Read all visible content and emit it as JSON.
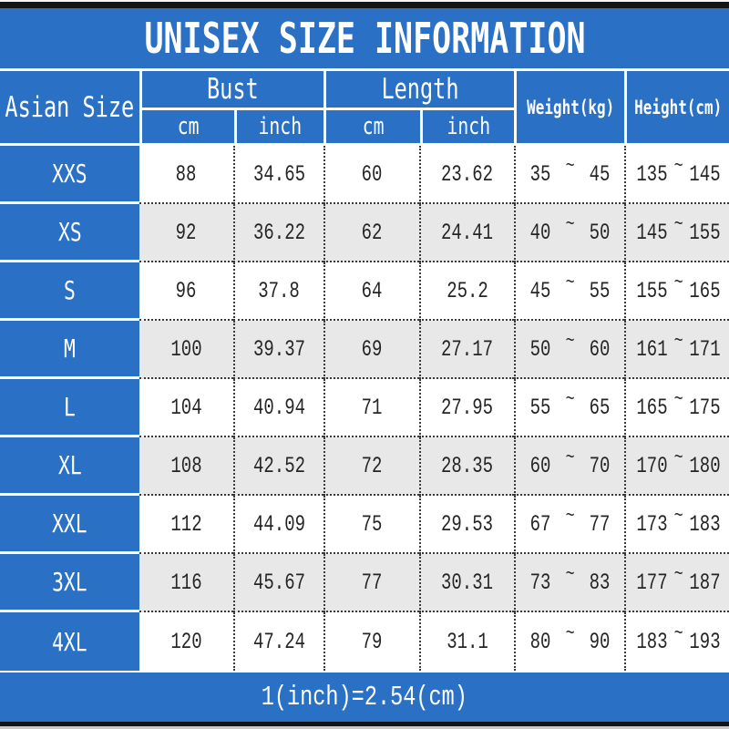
{
  "title": "UNISEX SIZE INFORMATION",
  "symbols": {
    "tilde": "~"
  },
  "header": {
    "asian_size": "Asian Size",
    "bust": "Bust",
    "length": "Length",
    "cm": "cm",
    "inch": "inch",
    "weight": "Weight(kg)",
    "height": "Height(cm)"
  },
  "footer_note": "1(inch)=2.54(cm)",
  "colors": {
    "table_blue": "#2a70c4",
    "row_stripe_gray": "#e8e8e8",
    "text_black": "#252525"
  },
  "chart_data": {
    "type": "table",
    "title": "UNISEX SIZE INFORMATION",
    "columns": [
      "Asian Size",
      "Bust cm",
      "Bust inch",
      "Length cm",
      "Length inch",
      "Weight(kg)",
      "Height(cm)"
    ],
    "rows": [
      {
        "size": "XXS",
        "bust_cm": "88",
        "bust_inch": "34.65",
        "len_cm": "60",
        "len_inch": "23.62",
        "weight_min": "35",
        "weight_max": "45",
        "height_min": "135",
        "height_max": "145"
      },
      {
        "size": "XS",
        "bust_cm": "92",
        "bust_inch": "36.22",
        "len_cm": "62",
        "len_inch": "24.41",
        "weight_min": "40",
        "weight_max": "50",
        "height_min": "145",
        "height_max": "155"
      },
      {
        "size": "S",
        "bust_cm": "96",
        "bust_inch": "37.8",
        "len_cm": "64",
        "len_inch": "25.2",
        "weight_min": "45",
        "weight_max": "55",
        "height_min": "155",
        "height_max": "165"
      },
      {
        "size": "M",
        "bust_cm": "100",
        "bust_inch": "39.37",
        "len_cm": "69",
        "len_inch": "27.17",
        "weight_min": "50",
        "weight_max": "60",
        "height_min": "161",
        "height_max": "171"
      },
      {
        "size": "L",
        "bust_cm": "104",
        "bust_inch": "40.94",
        "len_cm": "71",
        "len_inch": "27.95",
        "weight_min": "55",
        "weight_max": "65",
        "height_min": "165",
        "height_max": "175"
      },
      {
        "size": "XL",
        "bust_cm": "108",
        "bust_inch": "42.52",
        "len_cm": "72",
        "len_inch": "28.35",
        "weight_min": "60",
        "weight_max": "70",
        "height_min": "170",
        "height_max": "180"
      },
      {
        "size": "XXL",
        "bust_cm": "112",
        "bust_inch": "44.09",
        "len_cm": "75",
        "len_inch": "29.53",
        "weight_min": "67",
        "weight_max": "77",
        "height_min": "173",
        "height_max": "183"
      },
      {
        "size": "3XL",
        "bust_cm": "116",
        "bust_inch": "45.67",
        "len_cm": "77",
        "len_inch": "30.31",
        "weight_min": "73",
        "weight_max": "83",
        "height_min": "177",
        "height_max": "187"
      },
      {
        "size": "4XL",
        "bust_cm": "120",
        "bust_inch": "47.24",
        "len_cm": "79",
        "len_inch": "31.1",
        "weight_min": "80",
        "weight_max": "90",
        "height_min": "183",
        "height_max": "193"
      }
    ],
    "note": "1(inch)=2.54(cm)"
  }
}
